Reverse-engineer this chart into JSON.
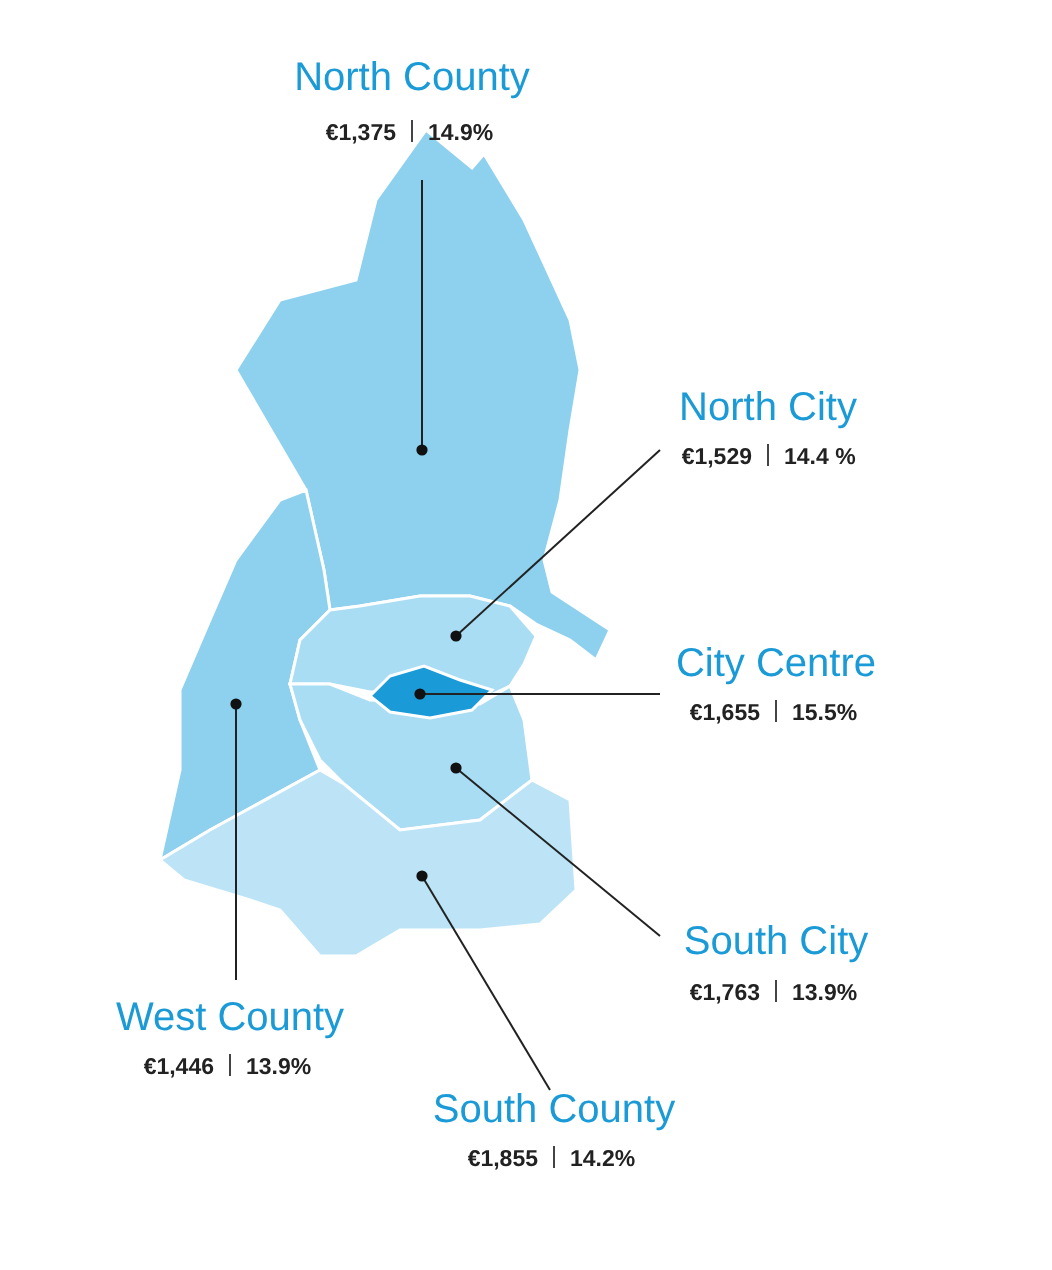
{
  "chart_data": {
    "type": "other",
    "categories": [
      "North County",
      "North City",
      "City Centre",
      "South City",
      "West County",
      "South County"
    ],
    "colors": [
      "#8dd1ee",
      "#a9ddf3",
      "#1a9ad6",
      "#a9ddf3",
      "#8dd1ee",
      "#bde4f6"
    ],
    "series": [
      {
        "values": [
          1375,
          1529,
          1655,
          1763,
          1446,
          1855
        ],
        "value_labels": [
          "€1,375",
          "€1,529",
          "€1,655",
          "€1,763",
          "€1,446",
          "€1,855"
        ]
      },
      {
        "values": [
          14.9,
          14.4,
          15.5,
          13.9,
          13.9,
          14.2
        ],
        "value_labels": [
          "14.9%",
          "14.4 %",
          "15.5%",
          "13.9%",
          "13.9%",
          "14.2%"
        ]
      }
    ]
  }
}
